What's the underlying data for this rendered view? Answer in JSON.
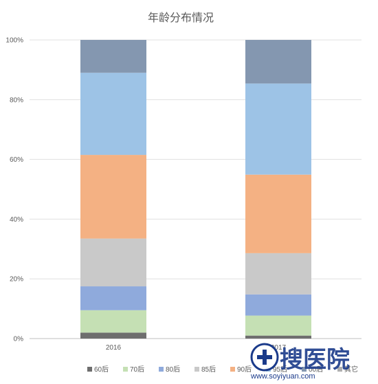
{
  "chart_data": {
    "type": "bar",
    "stacked": true,
    "percent": true,
    "title": "年龄分布情况",
    "categories": [
      "2016",
      "2017"
    ],
    "yticks": [
      "0%",
      "20%",
      "40%",
      "60%",
      "80%",
      "100%"
    ],
    "ylim": [
      0,
      100
    ],
    "grid": true,
    "legend_position": "bottom",
    "series": [
      {
        "name": "60后",
        "color": "#6e6e6e",
        "values": [
          2,
          1
        ]
      },
      {
        "name": "70后",
        "color": "#c5e0b4",
        "values": [
          7.5,
          6.7
        ]
      },
      {
        "name": "80后",
        "color": "#8faadc",
        "values": [
          8,
          7.1
        ]
      },
      {
        "name": "85后",
        "color": "#c9c9c9",
        "values": [
          16,
          13.8
        ]
      },
      {
        "name": "90后",
        "color": "#f4b183",
        "values": [
          28,
          26.3
        ]
      },
      {
        "name": "95后",
        "color": "#9dc3e6",
        "values": [
          27.5,
          30.5
        ]
      },
      {
        "name": "00后",
        "color": "#8497b0",
        "values": [
          11,
          14.6
        ]
      },
      {
        "name": "其它",
        "color": "#b0b0b0",
        "values": [
          0,
          0
        ]
      }
    ]
  },
  "watermark": {
    "brand": "搜医院",
    "url": "www.soyiyuan.com"
  }
}
